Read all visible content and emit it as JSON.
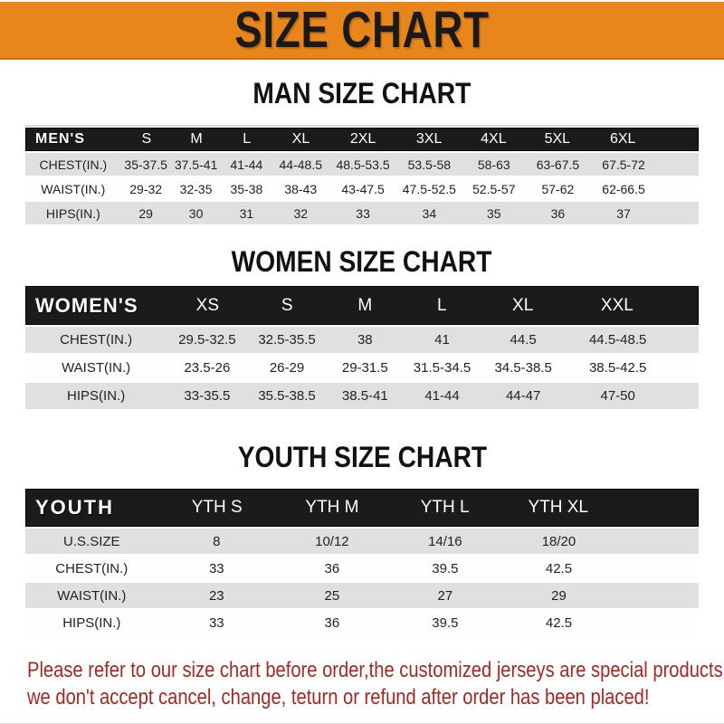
{
  "banner": {
    "title": "SIZE CHART"
  },
  "chart_data": [
    {
      "type": "table",
      "title": "MAN SIZE CHART",
      "header": [
        "MEN'S",
        "S",
        "M",
        "L",
        "XL",
        "2XL",
        "3XL",
        "4XL",
        "5XL",
        "6XL"
      ],
      "rows": [
        [
          "CHEST(IN.)",
          "35-37.5",
          "37.5-41",
          "41-44",
          "44-48.5",
          "48.5-53.5",
          "53.5-58",
          "58-63",
          "63-67.5",
          "67.5-72"
        ],
        [
          "WAIST(IN.)",
          "29-32",
          "32-35",
          "35-38",
          "38-43",
          "43-47.5",
          "47.5-52.5",
          "52.5-57",
          "57-62",
          "62-66.5"
        ],
        [
          "HIPS(IN.)",
          "29",
          "30",
          "31",
          "32",
          "33",
          "34",
          "35",
          "36",
          "37"
        ]
      ]
    },
    {
      "type": "table",
      "title": "WOMEN SIZE CHART",
      "header": [
        "WOMEN'S",
        "XS",
        "S",
        "M",
        "L",
        "XL",
        "XXL"
      ],
      "rows": [
        [
          "CHEST(IN.)",
          "29.5-32.5",
          "32.5-35.5",
          "38",
          "41",
          "44.5",
          "44.5-48.5"
        ],
        [
          "WAIST(IN.)",
          "23.5-26",
          "26-29",
          "29-31.5",
          "31.5-34.5",
          "34.5-38.5",
          "38.5-42.5"
        ],
        [
          "HIPS(IN.)",
          "33-35.5",
          "35.5-38.5",
          "38.5-41",
          "41-44",
          "44-47",
          "47-50"
        ]
      ]
    },
    {
      "type": "table",
      "title": "YOUTH SIZE CHART",
      "header": [
        "YOUTH",
        "YTH S",
        "YTH M",
        "YTH L",
        "YTH XL"
      ],
      "rows": [
        [
          "U.S.SIZE",
          "8",
          "10/12",
          "14/16",
          "18/20"
        ],
        [
          "CHEST(IN.)",
          "33",
          "36",
          "39.5",
          "42.5"
        ],
        [
          "WAIST(IN.)",
          "23",
          "25",
          "27",
          "29"
        ],
        [
          "HIPS(IN.)",
          "33",
          "36",
          "39.5",
          "42.5"
        ]
      ]
    }
  ],
  "footer": {
    "line1": "Please refer to our size chart before order,the customized jerseys are special products,",
    "line2": "we don't accept cancel, change, teturn or refund after order has been placed!"
  },
  "colors": {
    "banner_bg": "#E8861B",
    "banner_text": "#1A1A1A",
    "header_bar_bg": "#1B1B1B",
    "header_bar_text": "#FFFFFF",
    "row_gray": "#E0E0E0",
    "row_white": "#FEFEFE",
    "cell_text": "#222222",
    "footer_red": "#A12A24",
    "divider": "#D9D9D9"
  }
}
